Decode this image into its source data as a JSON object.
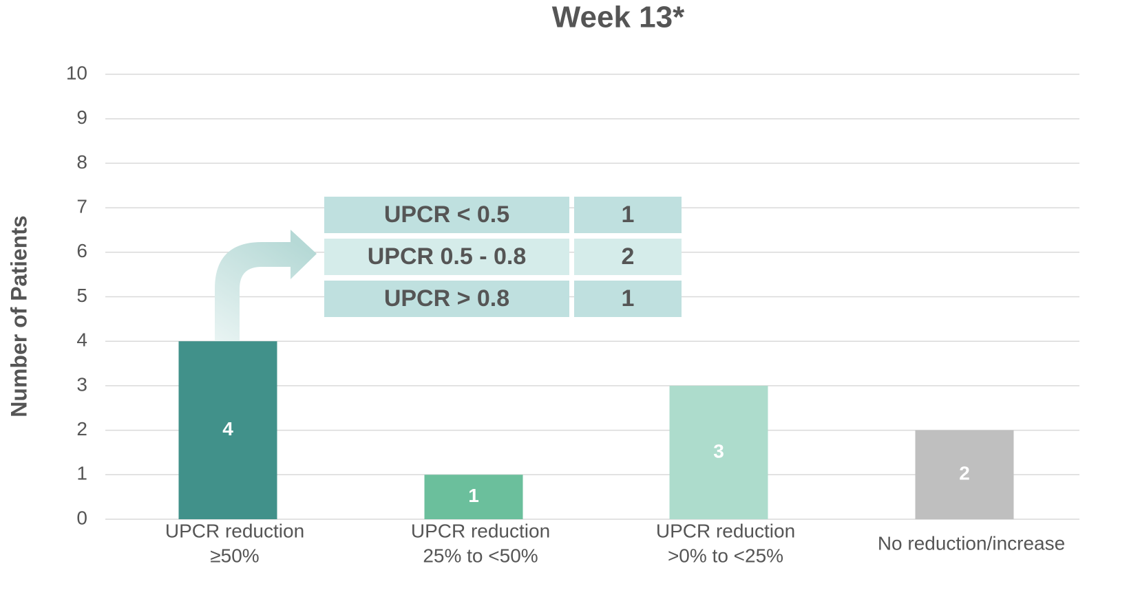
{
  "chart_data": {
    "type": "bar",
    "title": "Week 13*",
    "y_label": "Number of Patients",
    "categories": [
      [
        "UPCR reduction",
        "≥50%"
      ],
      [
        "UPCR reduction",
        "25% to <50%"
      ],
      [
        "UPCR reduction",
        ">0% to <25%"
      ],
      [
        "No reduction/increase"
      ]
    ],
    "values": [
      4,
      1,
      3,
      2
    ],
    "colors": [
      "#41918a",
      "#6bbf9c",
      "#addccc",
      "#bfbfbf"
    ],
    "ylim": [
      0,
      10
    ],
    "yticks": [
      0,
      1,
      2,
      3,
      4,
      5,
      6,
      7,
      8,
      9,
      10
    ],
    "grid": true,
    "inset_table": {
      "rows": [
        [
          "UPCR < 0.5",
          "1"
        ],
        [
          "UPCR 0.5 - 0.8",
          "2"
        ],
        [
          "UPCR > 0.8",
          "1"
        ]
      ]
    }
  }
}
